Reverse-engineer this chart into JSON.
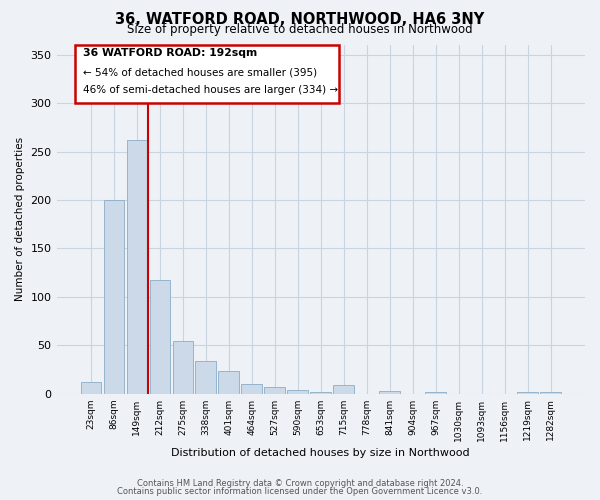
{
  "title": "36, WATFORD ROAD, NORTHWOOD, HA6 3NY",
  "subtitle": "Size of property relative to detached houses in Northwood",
  "xlabel": "Distribution of detached houses by size in Northwood",
  "ylabel": "Number of detached properties",
  "bin_labels": [
    "23sqm",
    "86sqm",
    "149sqm",
    "212sqm",
    "275sqm",
    "338sqm",
    "401sqm",
    "464sqm",
    "527sqm",
    "590sqm",
    "653sqm",
    "715sqm",
    "778sqm",
    "841sqm",
    "904sqm",
    "967sqm",
    "1030sqm",
    "1093sqm",
    "1156sqm",
    "1219sqm",
    "1282sqm"
  ],
  "bar_heights": [
    12,
    200,
    262,
    117,
    54,
    34,
    23,
    10,
    7,
    4,
    2,
    9,
    0,
    3,
    0,
    2,
    0,
    0,
    0,
    2,
    2
  ],
  "bar_color": "#ccd9e8",
  "bar_edge_color": "#8aaec8",
  "annotation_title": "36 WATFORD ROAD: 192sqm",
  "annotation_line1": "← 54% of detached houses are smaller (395)",
  "annotation_line2": "46% of semi-detached houses are larger (334) →",
  "ylim": [
    0,
    360
  ],
  "yticks": [
    0,
    50,
    100,
    150,
    200,
    250,
    300,
    350
  ],
  "footer1": "Contains HM Land Registry data © Crown copyright and database right 2024.",
  "footer2": "Contains public sector information licensed under the Open Government Licence v3.0.",
  "bg_color": "#eef2f7",
  "plot_bg_color": "#eef2f7",
  "grid_color": "#c8d4e0"
}
